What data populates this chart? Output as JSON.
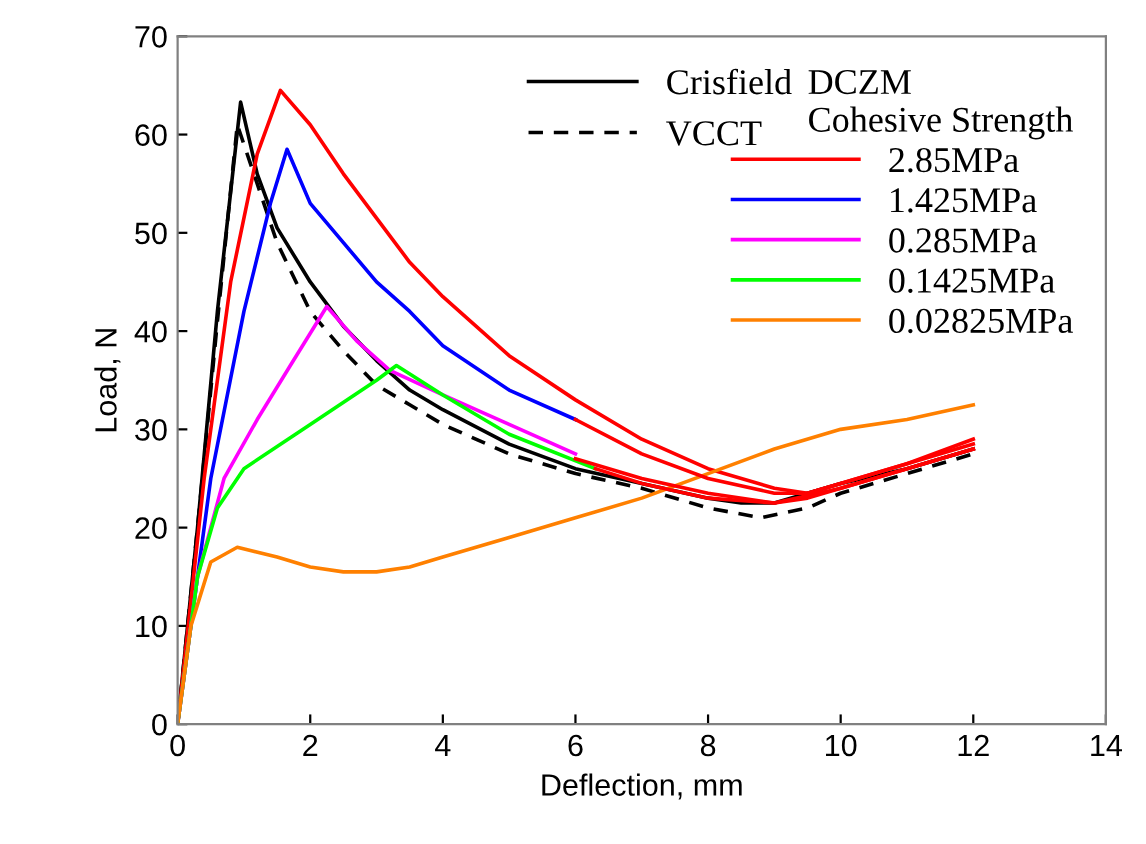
{
  "chart_data": {
    "type": "line",
    "xlabel": "Deflection, mm",
    "ylabel": "Load, N",
    "legend_title": "DCZM",
    "annotations": [
      "Cohesive Strength"
    ],
    "xlim": [
      0,
      14
    ],
    "xticks": [
      0,
      2,
      4,
      6,
      8,
      10,
      12,
      14
    ],
    "ylim": [
      0,
      70
    ],
    "yticks": [
      0,
      10,
      20,
      30,
      40,
      50,
      60,
      70
    ],
    "grid": false,
    "legend": "top right",
    "marker": "none",
    "series": [
      {
        "name": "Crisfield",
        "color": "#000000",
        "line_style": "solid",
        "x": [
          0,
          0.3,
          0.6,
          0.95,
          1.2,
          1.5,
          2,
          2.5,
          3,
          3.5,
          4,
          5,
          6,
          7,
          8,
          8.5,
          9,
          9.5,
          10,
          11,
          12
        ],
        "values": [
          0,
          20,
          42,
          63.3,
          56,
          50.5,
          45,
          40.5,
          37,
          34,
          32,
          28.5,
          26,
          24.5,
          23,
          22.5,
          22.5,
          23.5,
          24.5,
          26,
          28
        ]
      },
      {
        "name": "VCCT",
        "color": "#000000",
        "line_style": "dashed",
        "x": [
          0,
          0.3,
          0.6,
          0.9,
          1.2,
          1.5,
          2,
          2.5,
          3,
          3.5,
          4,
          5,
          6,
          7,
          8,
          8.8,
          9.5,
          10,
          11,
          12
        ],
        "values": [
          0,
          20,
          41,
          61,
          55,
          49,
          42,
          38,
          34.5,
          32.5,
          30.5,
          27.5,
          25.5,
          24,
          22,
          21,
          22,
          23.5,
          25.5,
          27.5
        ]
      },
      {
        "name": "2.85MPa",
        "color": "#ff0000",
        "x": [
          0,
          0.4,
          0.8,
          1.2,
          1.55,
          2,
          2.5,
          3,
          3.5,
          4,
          5,
          6,
          7,
          8,
          9,
          9.5,
          10,
          11,
          12
        ],
        "values": [
          0,
          25,
          45,
          58,
          64.5,
          61,
          56,
          51.5,
          47,
          43.5,
          37.5,
          33,
          29,
          26,
          24,
          23.5,
          24.5,
          26.5,
          29
        ]
      },
      {
        "name": "1.425MPa",
        "color": "#0000ff",
        "x": [
          0,
          0.5,
          1,
          1.4,
          1.65,
          2,
          2.5,
          3,
          3.5,
          4,
          5,
          6
        ],
        "values": [
          0,
          25,
          42,
          53,
          58.5,
          53,
          49,
          45,
          42,
          38.5,
          34,
          31
        ]
      },
      {
        "name": "0.285MPa",
        "color": "#ff00ff",
        "x": [
          0,
          0.3,
          0.7,
          1.2,
          1.7,
          2.25,
          2.7,
          3.2,
          4,
          5,
          6
        ],
        "values": [
          0,
          15,
          25,
          31,
          36.5,
          42.5,
          39,
          36,
          33.5,
          30.5,
          27.5
        ]
      },
      {
        "name": "0.1425MPa",
        "color": "#00ff00",
        "x": [
          0,
          0.3,
          0.6,
          1,
          2,
          3,
          3.3,
          4,
          5,
          6.3
        ],
        "values": [
          0,
          15,
          22,
          26,
          30.5,
          35,
          36.5,
          33.5,
          29.5,
          26
        ]
      },
      {
        "name": "0.02825MPa",
        "color": "#ff8000",
        "x": [
          0,
          0.2,
          0.5,
          0.9,
          1.5,
          2,
          2.5,
          3,
          3.5,
          4,
          5,
          6,
          7,
          8,
          9,
          10,
          11,
          12
        ],
        "values": [
          0,
          10,
          16.5,
          18,
          17,
          16,
          15.5,
          15.5,
          16,
          17,
          19,
          21,
          23,
          25.5,
          28,
          30,
          31,
          32.5
        ]
      },
      {
        "color": "#ff0000",
        "x": [
          6,
          7,
          8,
          9,
          9.5,
          10,
          11,
          12
        ],
        "values": [
          31,
          27.5,
          25,
          23.5,
          23.5,
          24.5,
          26.5,
          28.5
        ]
      },
      {
        "color": "#ff0000",
        "x": [
          6,
          7,
          8,
          9,
          9.5,
          10,
          11,
          12
        ],
        "values": [
          27,
          25,
          23.5,
          22.5,
          23,
          24,
          26,
          28
        ]
      },
      {
        "color": "#ff0000",
        "x": [
          6.3,
          7,
          8,
          9,
          10,
          11,
          12
        ],
        "values": [
          26,
          24.5,
          23,
          22.5,
          24,
          26,
          28
        ]
      }
    ]
  }
}
